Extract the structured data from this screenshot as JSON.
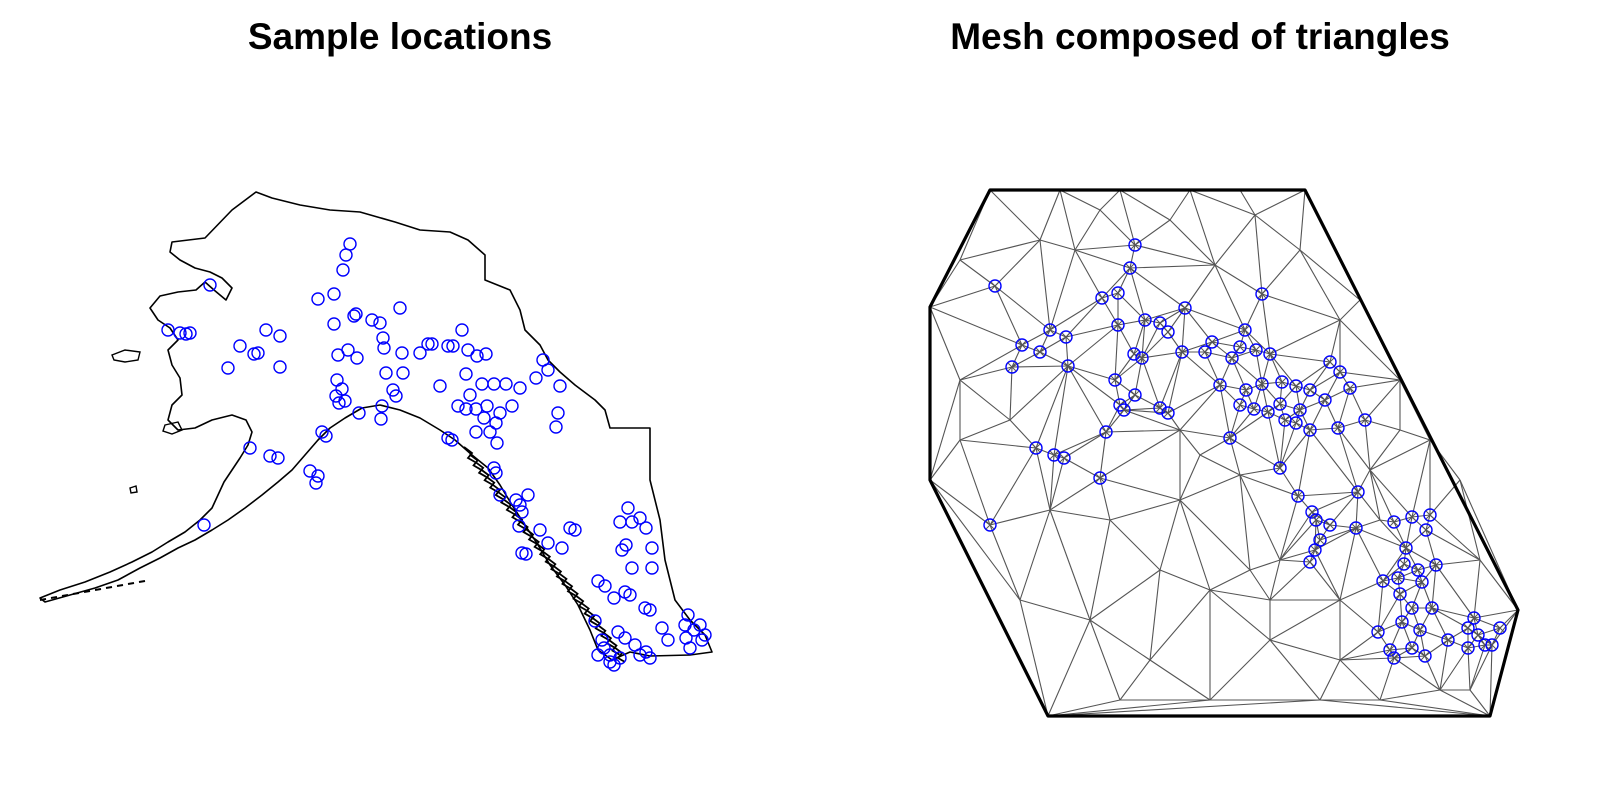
{
  "panels": [
    {
      "id": "left",
      "title": "Sample locations"
    },
    {
      "id": "right",
      "title": "Mesh composed of triangles"
    }
  ],
  "colors": {
    "coastline": "#000000",
    "points": "#0000ff",
    "mesh_edges": "#555555",
    "mesh_boundary": "#000000",
    "background": "#ffffff"
  }
}
